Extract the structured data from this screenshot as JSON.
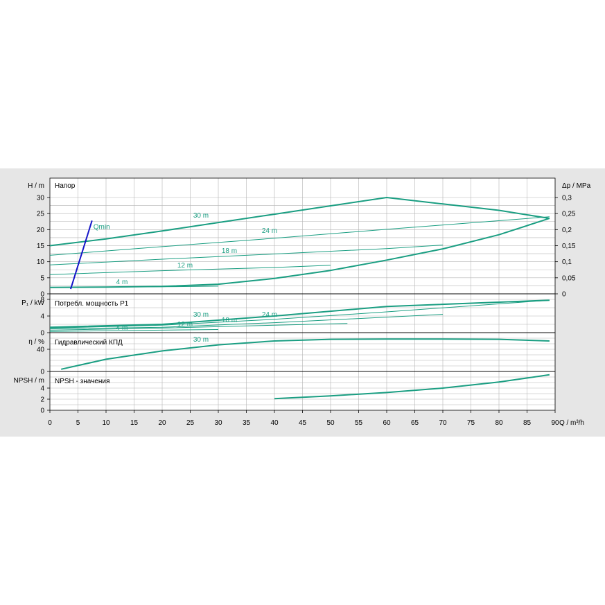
{
  "colors": {
    "curve": "#1a9e82",
    "qmin": "#1414c8",
    "grid": "#b4b4b4",
    "background": "#e6e6e6",
    "axis": "#000000"
  },
  "chart_data": [
    {
      "type": "line",
      "panel": "head",
      "title": "Напор",
      "ylabel": "H / m",
      "ylabel_right": "Δp / MPa",
      "xlabel": "Q / m³/h",
      "xlim": [
        0,
        90
      ],
      "ylim": [
        0,
        30
      ],
      "x_ticks": [
        0,
        5,
        10,
        15,
        20,
        25,
        30,
        35,
        40,
        45,
        50,
        55,
        60,
        65,
        70,
        75,
        80,
        85,
        90
      ],
      "y_ticks": [
        0,
        5,
        10,
        15,
        20,
        25,
        30
      ],
      "y_right_ticks": [
        "0",
        "0,05",
        "0,1",
        "0,15",
        "0,2",
        "0,25",
        "0,3"
      ],
      "series": [
        {
          "name": "30 m",
          "x": [
            0,
            10,
            20,
            30,
            40,
            50,
            60,
            70,
            80,
            89
          ],
          "y": [
            15,
            17.1,
            19.6,
            22.2,
            24.8,
            27.4,
            30,
            28,
            26,
            23.5
          ]
        },
        {
          "name": "24 m",
          "x": [
            0,
            20,
            40,
            60,
            89
          ],
          "y": [
            12,
            14.7,
            17.3,
            20.1,
            24
          ]
        },
        {
          "name": "18 m",
          "x": [
            0,
            20,
            40,
            60,
            70
          ],
          "y": [
            9,
            10.8,
            12.4,
            14.1,
            15.2
          ]
        },
        {
          "name": "12 m",
          "x": [
            0,
            20,
            40,
            50
          ],
          "y": [
            6,
            7.2,
            8.2,
            8.9
          ]
        },
        {
          "name": "4 m",
          "x": [
            0,
            10,
            20,
            30
          ],
          "y": [
            2,
            2.1,
            2.2,
            2.4
          ]
        },
        {
          "name": "",
          "x": [
            0,
            10,
            20,
            30,
            40,
            50,
            60,
            70,
            80,
            89
          ],
          "y": [
            2,
            2.1,
            2.3,
            3,
            4.8,
            7.3,
            10.5,
            14,
            18.4,
            23.5
          ]
        }
      ],
      "annotations": [
        {
          "text": "Qmin",
          "x": [
            3.7,
            7.5
          ],
          "y": [
            1.5,
            22.8
          ]
        }
      ]
    },
    {
      "type": "line",
      "panel": "power",
      "title": "Потребл. мощность P1",
      "ylabel": "P₁ / kW",
      "ylim": [
        0,
        8
      ],
      "y_ticks": [
        0,
        4,
        8
      ],
      "series": [
        {
          "name": "30 m",
          "x": [
            0,
            20,
            40,
            60,
            89
          ],
          "y": [
            1.3,
            2,
            4,
            6.3,
            7.8
          ]
        },
        {
          "name": "24 m",
          "x": [
            0,
            20,
            40,
            60,
            89
          ],
          "y": [
            1.1,
            1.8,
            3.2,
            5,
            7.8
          ]
        },
        {
          "name": "18 m",
          "x": [
            0,
            20,
            40,
            70
          ],
          "y": [
            0.9,
            1.3,
            2.4,
            4.4
          ]
        },
        {
          "name": "12 m",
          "x": [
            0,
            20,
            40,
            53
          ],
          "y": [
            0.6,
            1.1,
            1.8,
            2.2
          ]
        },
        {
          "name": "4 m",
          "x": [
            0,
            10,
            20,
            30
          ],
          "y": [
            0.3,
            0.45,
            0.6,
            0.75
          ]
        }
      ]
    },
    {
      "type": "line",
      "panel": "efficiency",
      "title": "Гидравлический КПД",
      "ylabel": "η / %",
      "ylim": [
        0,
        60
      ],
      "y_ticks": [
        0,
        40
      ],
      "series": [
        {
          "name": "30 m",
          "x": [
            2,
            10,
            20,
            30,
            40,
            50,
            60,
            70,
            80,
            89
          ],
          "y": [
            4,
            22,
            37,
            48,
            55,
            58,
            58.5,
            58.5,
            58,
            55
          ]
        }
      ]
    },
    {
      "type": "line",
      "panel": "npsh",
      "title": "NPSH - значения",
      "ylabel": "NPSH / m",
      "ylim": [
        0,
        7
      ],
      "y_ticks": [
        0,
        2,
        4
      ],
      "series": [
        {
          "name": "",
          "x": [
            40,
            50,
            60,
            70,
            80,
            89
          ],
          "y": [
            2.1,
            2.6,
            3.2,
            4,
            5.1,
            6.4
          ]
        }
      ]
    }
  ]
}
